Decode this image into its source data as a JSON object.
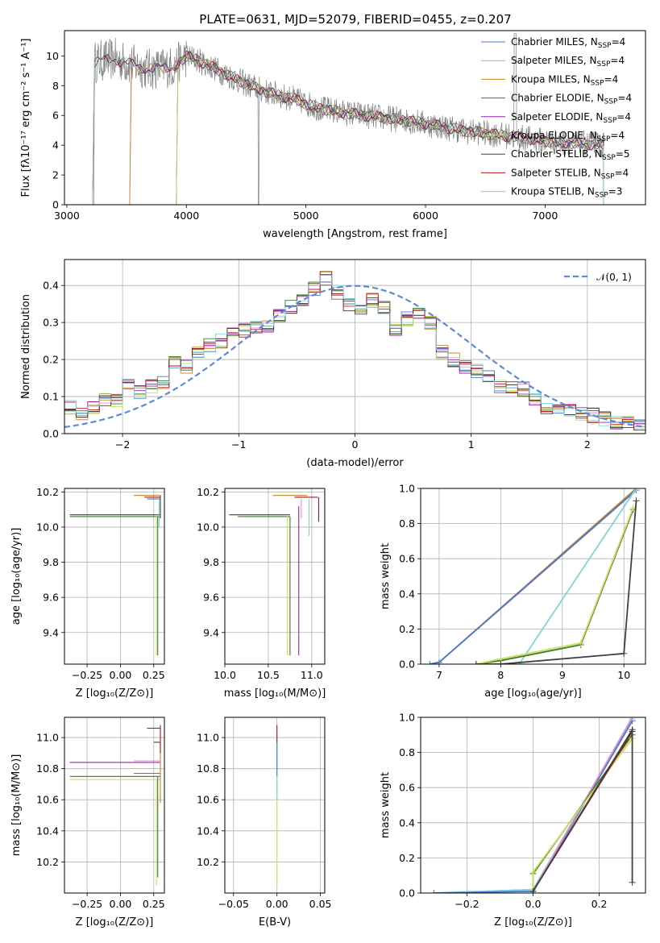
{
  "figure": {
    "title": "PLATE=0631, MJD=52079, FIBERID=0455, z=0.207"
  },
  "colors": {
    "Chabrier MILES": "#4878d0",
    "Salpeter MILES": "#e48fc6",
    "Kroupa MILES": "#c8851f",
    "Chabrier ELODIE": "#3d7a2e",
    "Salpeter ELODIE": "#9a1fb0",
    "Kroupa ELODIE": "#c9e05a",
    "Chabrier STELIB": "#404040",
    "Salpeter STELIB": "#b0101a",
    "Kroupa STELIB": "#7fd3dd",
    "data": "#808080",
    "gauss": "#5b8bd8"
  },
  "legend_spectrum": [
    {
      "name": "Chabrier MILES",
      "pre": "Chabrier MILES, N",
      "sub": "SSP",
      "post": "=4"
    },
    {
      "name": "Salpeter MILES",
      "pre": "Salpeter MILES, N",
      "sub": "SSP",
      "post": "=4"
    },
    {
      "name": "Kroupa MILES",
      "pre": "Kroupa MILES, N",
      "sub": "SSP",
      "post": "=4"
    },
    {
      "name": "Chabrier ELODIE",
      "pre": "Chabrier ELODIE, N",
      "sub": "SSP",
      "post": "=4"
    },
    {
      "name": "Salpeter ELODIE",
      "pre": "Salpeter ELODIE, N",
      "sub": "SSP",
      "post": "=4"
    },
    {
      "name": "Kroupa ELODIE",
      "pre": "Kroupa ELODIE, N",
      "sub": "SSP",
      "post": "=4"
    },
    {
      "name": "Chabrier STELIB",
      "pre": "Chabrier STELIB, N",
      "sub": "SSP",
      "post": "=5"
    },
    {
      "name": "Salpeter STELIB",
      "pre": "Salpeter STELIB, N",
      "sub": "SSP",
      "post": "=4"
    },
    {
      "name": "Kroupa STELIB",
      "pre": "Kroupa STELIB, N",
      "sub": "SSP",
      "post": "=3"
    }
  ],
  "chart_data": [
    {
      "id": "spectrum",
      "type": "line",
      "xlabel": "wavelength [Angstrom, rest frame]",
      "ylabel": "Flux [fλ10⁻¹⁷ erg cm⁻² s⁻¹ A⁻¹]",
      "xlim": [
        2980,
        7840
      ],
      "ylim": [
        0,
        11.7
      ],
      "xticks": [
        3000,
        4000,
        5000,
        6000,
        7000
      ],
      "yticks": [
        0,
        2,
        4,
        6,
        8,
        10
      ],
      "grid": false,
      "legend_position": "upper right",
      "continuum": {
        "x": [
          3230,
          3400,
          3550,
          3700,
          3900,
          4000,
          4100,
          4300,
          4500,
          4700,
          4900,
          5100,
          5300,
          5500,
          5700,
          5900,
          6100,
          6300,
          6500,
          6700,
          6900,
          7100,
          7300,
          7500
        ],
        "y": [
          9.6,
          9.8,
          9.4,
          9.1,
          9.3,
          10.0,
          9.7,
          8.9,
          8.1,
          7.5,
          7.1,
          6.5,
          6.2,
          6.0,
          5.8,
          5.6,
          5.3,
          5.0,
          4.8,
          4.6,
          4.4,
          4.2,
          4.1,
          4.0
        ]
      },
      "noise_amplitude": 0.9,
      "series_starts": [
        {
          "name": "Chabrier MILES",
          "start": 3540
        },
        {
          "name": "Salpeter MILES",
          "start": 3540
        },
        {
          "name": "Kroupa MILES",
          "start": 3540
        },
        {
          "name": "Chabrier ELODIE",
          "start": 3930
        },
        {
          "name": "Salpeter ELODIE",
          "start": 3930
        },
        {
          "name": "Kroupa ELODIE",
          "start": 3930
        },
        {
          "name": "Chabrier STELIB",
          "start": 3230
        },
        {
          "name": "Salpeter STELIB",
          "start": 3230
        },
        {
          "name": "Kroupa STELIB",
          "start": 3230
        }
      ]
    },
    {
      "id": "residuals",
      "type": "line",
      "xlabel": "(data-model)/error",
      "ylabel": "Normed distribution",
      "xlim": [
        -2.5,
        2.5
      ],
      "ylim": [
        0,
        0.47
      ],
      "xticks": [
        -2,
        -1,
        0,
        1,
        2
      ],
      "xtick_labels": [
        "−2",
        "−1",
        "0",
        "1",
        "2"
      ],
      "yticks": [
        0.0,
        0.1,
        0.2,
        0.3,
        0.4
      ],
      "ytick_labels": [
        "0.0",
        "0.1",
        "0.2",
        "0.3",
        "0.4"
      ],
      "grid": true,
      "legend": "𝒩(0, 1)",
      "hist_bins": [
        -2.5,
        -2.4,
        -2.3,
        -2.2,
        -2.1,
        -2.0,
        -1.9,
        -1.8,
        -1.7,
        -1.6,
        -1.5,
        -1.4,
        -1.3,
        -1.2,
        -1.1,
        -1.0,
        -0.9,
        -0.8,
        -0.7,
        -0.6,
        -0.5,
        -0.4,
        -0.3,
        -0.2,
        -0.1,
        0.0,
        0.1,
        0.2,
        0.3,
        0.4,
        0.5,
        0.6,
        0.7,
        0.8,
        0.9,
        1.0,
        1.1,
        1.2,
        1.3,
        1.4,
        1.5,
        1.6,
        1.7,
        1.8,
        1.9,
        2.0,
        2.1,
        2.2,
        2.3,
        2.4
      ],
      "hist_base": [
        0.07,
        0.05,
        0.07,
        0.09,
        0.09,
        0.13,
        0.11,
        0.13,
        0.14,
        0.19,
        0.18,
        0.22,
        0.24,
        0.25,
        0.27,
        0.28,
        0.29,
        0.29,
        0.32,
        0.34,
        0.36,
        0.39,
        0.42,
        0.38,
        0.35,
        0.34,
        0.36,
        0.34,
        0.28,
        0.31,
        0.33,
        0.3,
        0.22,
        0.2,
        0.18,
        0.17,
        0.16,
        0.13,
        0.12,
        0.12,
        0.09,
        0.07,
        0.06,
        0.06,
        0.05,
        0.05,
        0.04,
        0.03,
        0.03,
        0.02
      ]
    },
    {
      "id": "age-vs-Z",
      "type": "line",
      "xlabel": "Z [log₁₀(Z/Z⊙)]",
      "ylabel": "age  [log₁₀(age/yr)]",
      "xlim": [
        -0.42,
        0.33
      ],
      "ylim": [
        9.22,
        10.22
      ],
      "xticks": [
        -0.25,
        0.0,
        0.25
      ],
      "xtick_labels": [
        "−0.25",
        "0.00",
        "0.25"
      ],
      "yticks": [
        9.4,
        9.6,
        9.8,
        10.0,
        10.2
      ],
      "ytick_labels": [
        "9.4",
        "9.6",
        "9.8",
        "10.0",
        "10.2"
      ],
      "grid": true,
      "segments": [
        {
          "s": "Chabrier STELIB",
          "x": [
            -0.38,
            0.3
          ],
          "y": [
            10.07,
            10.07
          ]
        },
        {
          "s": "Chabrier ELODIE",
          "x": [
            -0.38,
            0.3
          ],
          "y": [
            10.06,
            10.06
          ]
        },
        {
          "s": "Kroupa MILES",
          "x": [
            0.1,
            0.3
          ],
          "y": [
            10.18,
            10.18
          ]
        },
        {
          "s": "Salpeter STELIB",
          "x": [
            0.18,
            0.3
          ],
          "y": [
            10.17,
            10.17
          ]
        },
        {
          "s": "Chabrier MILES",
          "x": [
            0.2,
            0.3
          ],
          "y": [
            10.16,
            10.16
          ]
        },
        {
          "s": "Kroupa ELODIE",
          "x": [
            0.27,
            0.27
          ],
          "y": [
            9.27,
            10.07
          ]
        },
        {
          "s": "Chabrier ELODIE",
          "x": [
            0.28,
            0.28
          ],
          "y": [
            9.27,
            10.06
          ]
        },
        {
          "s": "Kroupa STELIB",
          "x": [
            0.29,
            0.29
          ],
          "y": [
            10.0,
            10.16
          ]
        },
        {
          "s": "Chabrier STELIB",
          "x": [
            0.3,
            0.3
          ],
          "y": [
            10.05,
            10.18
          ]
        }
      ]
    },
    {
      "id": "age-vs-mass",
      "type": "line",
      "xlabel": "mass [log₁₀(M/M⊙)]",
      "ylabel": "",
      "xlim": [
        10.0,
        11.15
      ],
      "ylim": [
        9.22,
        10.22
      ],
      "xticks": [
        10.0,
        10.5,
        11.0
      ],
      "xtick_labels": [
        "10.0",
        "10.5",
        "11.0"
      ],
      "yticks": [
        9.4,
        9.6,
        9.8,
        10.0,
        10.2
      ],
      "ytick_labels": [
        "9.4",
        "9.6",
        "9.8",
        "10.0",
        "10.2"
      ],
      "grid": true,
      "segments": [
        {
          "s": "Chabrier STELIB",
          "x": [
            10.05,
            10.75
          ],
          "y": [
            10.07,
            10.07
          ]
        },
        {
          "s": "Chabrier ELODIE",
          "x": [
            10.15,
            10.75
          ],
          "y": [
            10.06,
            10.06
          ]
        },
        {
          "s": "Kroupa MILES",
          "x": [
            10.55,
            10.95
          ],
          "y": [
            10.18,
            10.18
          ]
        },
        {
          "s": "Salpeter STELIB",
          "x": [
            10.8,
            11.07
          ],
          "y": [
            10.17,
            10.17
          ]
        },
        {
          "s": "Kroupa ELODIE",
          "x": [
            10.72,
            10.72
          ],
          "y": [
            9.27,
            10.07
          ]
        },
        {
          "s": "Chabrier ELODIE",
          "x": [
            10.75,
            10.75
          ],
          "y": [
            9.27,
            10.06
          ]
        },
        {
          "s": "Salpeter ELODIE",
          "x": [
            10.85,
            10.85
          ],
          "y": [
            9.27,
            10.12
          ]
        },
        {
          "s": "Salpeter MILES",
          "x": [
            10.88,
            10.88
          ],
          "y": [
            10.05,
            10.16
          ]
        },
        {
          "s": "Kroupa STELIB",
          "x": [
            10.97,
            10.97
          ],
          "y": [
            9.95,
            10.16
          ]
        },
        {
          "s": "Salpeter STELIB",
          "x": [
            11.08,
            11.08
          ],
          "y": [
            10.03,
            10.17
          ]
        }
      ]
    },
    {
      "id": "weight-vs-age",
      "type": "line",
      "xlabel": "age  [log₁₀(age/yr)]",
      "ylabel": "mass weight",
      "xlim": [
        6.7,
        10.35
      ],
      "ylim": [
        0.0,
        1.0
      ],
      "xticks": [
        7,
        8,
        9,
        10
      ],
      "xtick_labels": [
        "7",
        "8",
        "9",
        "10"
      ],
      "yticks": [
        0.0,
        0.2,
        0.4,
        0.6,
        0.8,
        1.0
      ],
      "ytick_labels": [
        "0.0",
        "0.2",
        "0.4",
        "0.6",
        "0.8",
        "1.0"
      ],
      "grid": true,
      "series": [
        {
          "name": "Kroupa MILES",
          "x": [
            6.85,
            7.0,
            10.2
          ],
          "y": [
            0.0,
            0.01,
            1.0
          ]
        },
        {
          "name": "Chabrier MILES",
          "x": [
            6.85,
            7.0,
            10.2
          ],
          "y": [
            0.0,
            0.01,
            0.99
          ]
        },
        {
          "name": "Kroupa STELIB",
          "x": [
            8.3,
            10.2
          ],
          "y": [
            0.0,
            1.0
          ]
        },
        {
          "name": "Chabrier ELODIE",
          "x": [
            7.6,
            8.0,
            9.3,
            10.15
          ],
          "y": [
            0.0,
            0.02,
            0.11,
            0.88
          ]
        },
        {
          "name": "Kroupa ELODIE",
          "x": [
            7.6,
            8.0,
            9.3,
            10.15
          ],
          "y": [
            0.0,
            0.03,
            0.12,
            0.89
          ]
        },
        {
          "name": "Chabrier STELIB",
          "x": [
            7.6,
            8.0,
            10.0,
            10.2
          ],
          "y": [
            0.0,
            0.0,
            0.06,
            0.93
          ]
        }
      ]
    },
    {
      "id": "mass-vs-Z",
      "type": "line",
      "xlabel": "Z [log₁₀(Z/Z⊙)]",
      "ylabel": "mass [log₁₀(M/M⊙)]",
      "xlim": [
        -0.42,
        0.33
      ],
      "ylim": [
        10.0,
        11.13
      ],
      "xticks": [
        -0.25,
        0.0,
        0.25
      ],
      "xtick_labels": [
        "−0.25",
        "0.00",
        "0.25"
      ],
      "yticks": [
        10.2,
        10.4,
        10.6,
        10.8,
        11.0
      ],
      "ytick_labels": [
        "10.2",
        "10.4",
        "10.6",
        "10.8",
        "11.0"
      ],
      "grid": true,
      "segments": [
        {
          "s": "Salpeter ELODIE",
          "x": [
            -0.38,
            0.3
          ],
          "y": [
            10.84,
            10.84
          ]
        },
        {
          "s": "Chabrier MILES",
          "x": [
            0.1,
            0.3
          ],
          "y": [
            10.77,
            10.77
          ]
        },
        {
          "s": "Chabrier ELODIE",
          "x": [
            -0.38,
            0.3
          ],
          "y": [
            10.75,
            10.75
          ]
        },
        {
          "s": "Kroupa ELODIE",
          "x": [
            -0.38,
            0.3
          ],
          "y": [
            10.73,
            10.73
          ]
        },
        {
          "s": "Salpeter STELIB",
          "x": [
            0.2,
            0.3
          ],
          "y": [
            11.06,
            11.06
          ]
        },
        {
          "s": "Chabrier STELIB",
          "x": [
            0.25,
            0.3
          ],
          "y": [
            10.97,
            10.97
          ]
        },
        {
          "s": "Salpeter MILES",
          "x": [
            0.1,
            0.3
          ],
          "y": [
            10.85,
            10.85
          ]
        },
        {
          "s": "Kroupa ELODIE",
          "x": [
            0.27,
            0.27
          ],
          "y": [
            10.05,
            10.73
          ]
        },
        {
          "s": "Chabrier ELODIE",
          "x": [
            0.28,
            0.28
          ],
          "y": [
            10.1,
            10.75
          ]
        },
        {
          "s": "Kroupa MILES",
          "x": [
            0.3,
            0.3
          ],
          "y": [
            10.58,
            10.97
          ]
        },
        {
          "s": "Salpeter STELIB",
          "x": [
            0.3,
            0.3
          ],
          "y": [
            10.9,
            11.08
          ]
        }
      ]
    },
    {
      "id": "mass-vs-EBV",
      "type": "line",
      "xlabel": "E(B-V)",
      "ylabel": "",
      "xlim": [
        -0.06,
        0.055
      ],
      "ylim": [
        10.0,
        11.13
      ],
      "xticks": [
        -0.05,
        0.0,
        0.05
      ],
      "xtick_labels": [
        "−0.05",
        "0.00",
        "0.05"
      ],
      "yticks": [
        10.2,
        10.4,
        10.6,
        10.8,
        11.0
      ],
      "ytick_labels": [
        "10.2",
        "10.4",
        "10.6",
        "10.8",
        "11.0"
      ],
      "grid": true,
      "segments": [
        {
          "s": "Kroupa ELODIE",
          "x": [
            0.0,
            0.0
          ],
          "y": [
            10.05,
            10.73
          ]
        },
        {
          "s": "Kroupa STELIB",
          "x": [
            0.0,
            0.0
          ],
          "y": [
            10.6,
            10.97
          ]
        },
        {
          "s": "Chabrier MILES",
          "x": [
            0.0,
            0.0
          ],
          "y": [
            10.75,
            10.98
          ]
        },
        {
          "s": "Salpeter STELIB",
          "x": [
            0.0,
            0.0
          ],
          "y": [
            10.97,
            11.08
          ]
        }
      ]
    },
    {
      "id": "weight-vs-Z",
      "type": "line",
      "xlabel": "Z [log₁₀(Z/Z⊙)]",
      "ylabel": "mass weight",
      "xlim": [
        -0.34,
        0.34
      ],
      "ylim": [
        0.0,
        1.0
      ],
      "xticks": [
        -0.2,
        0.0,
        0.2
      ],
      "xtick_labels": [
        "−0.2",
        "0.0",
        "0.2"
      ],
      "yticks": [
        0.0,
        0.2,
        0.4,
        0.6,
        0.8,
        1.0
      ],
      "ytick_labels": [
        "0.0",
        "0.2",
        "0.4",
        "0.6",
        "0.8",
        "1.0"
      ],
      "grid": true,
      "series": [
        {
          "name": "Kroupa STELIB",
          "x": [
            -0.3,
            0.0,
            0.3
          ],
          "y": [
            0.0,
            0.02,
            0.99
          ]
        },
        {
          "name": "Chabrier MILES",
          "x": [
            -0.3,
            0.0,
            0.3
          ],
          "y": [
            0.0,
            0.01,
            0.98
          ]
        },
        {
          "name": "Salpeter MILES",
          "x": [
            0.0,
            0.0,
            0.3
          ],
          "y": [
            0.0,
            0.01,
            1.0
          ]
        },
        {
          "name": "Chabrier ELODIE",
          "x": [
            0.0,
            0.0,
            0.3
          ],
          "y": [
            0.0,
            0.11,
            0.9
          ]
        },
        {
          "name": "Kroupa ELODIE",
          "x": [
            0.0,
            0.0,
            0.3
          ],
          "y": [
            0.0,
            0.12,
            0.88
          ]
        },
        {
          "name": "Salpeter STELIB",
          "x": [
            0.0,
            0.0,
            0.3
          ],
          "y": [
            0.0,
            0.01,
            0.92
          ]
        },
        {
          "name": "Chabrier STELIB",
          "x": [
            0.0,
            0.0,
            0.3,
            0.3
          ],
          "y": [
            0.0,
            0.01,
            0.93,
            0.06
          ]
        }
      ]
    }
  ]
}
